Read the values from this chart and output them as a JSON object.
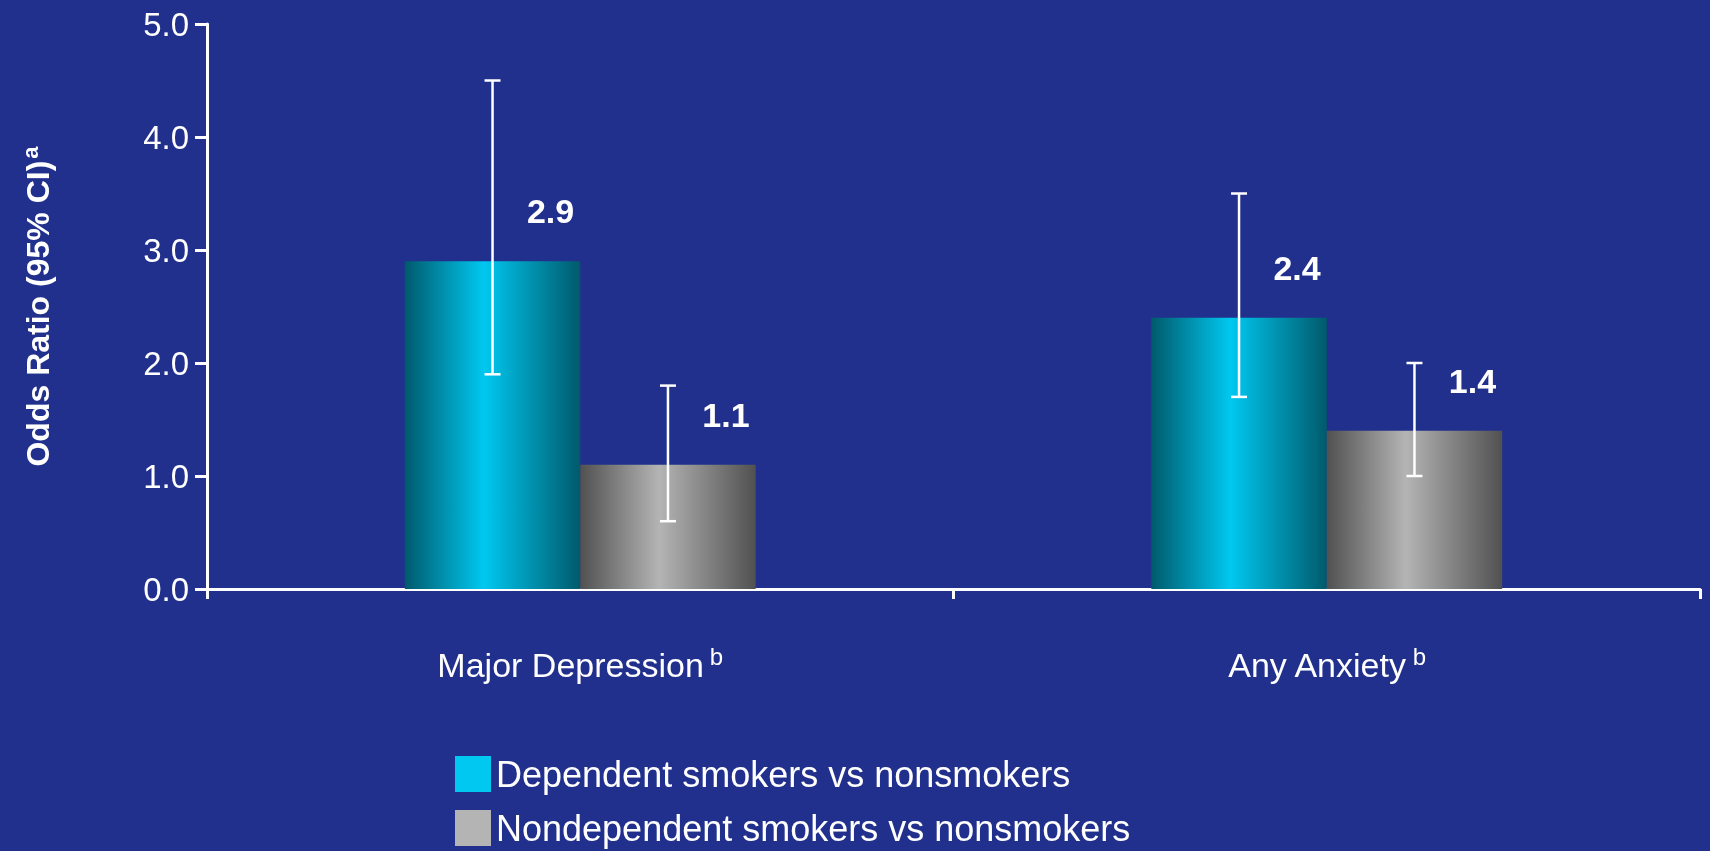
{
  "chart_data": {
    "type": "bar",
    "ylabel": "Odds Ratio (95% CI)$^{a}$",
    "categories": [
      "Major Depression$^{b}$",
      "Any Anxiety$^{b}$"
    ],
    "series": [
      {
        "name": "Dependent smokers vs nonsmokers",
        "color": "#00c8f0",
        "values": [
          2.9,
          2.4
        ],
        "errors": [
          [
            1.9,
            4.5
          ],
          [
            1.7,
            3.5
          ]
        ]
      },
      {
        "name": "Nondependent smokers vs nonsmokers",
        "color": "#b4b4b4",
        "values": [
          1.1,
          1.4
        ],
        "errors": [
          [
            0.6,
            1.8
          ],
          [
            1.0,
            2.0
          ]
        ]
      }
    ],
    "ylim": [
      0,
      5
    ],
    "yticks": [
      {
        "value": 0,
        "label": "0.0"
      },
      {
        "value": 1,
        "label": "1.0"
      },
      {
        "value": 2,
        "label": "2.0"
      },
      {
        "value": 3,
        "label": "3.0"
      },
      {
        "value": 4,
        "label": "4.0"
      },
      {
        "value": 5,
        "label": "5.0"
      }
    ],
    "data_labels": true,
    "grid": false,
    "legend": "bottom"
  }
}
